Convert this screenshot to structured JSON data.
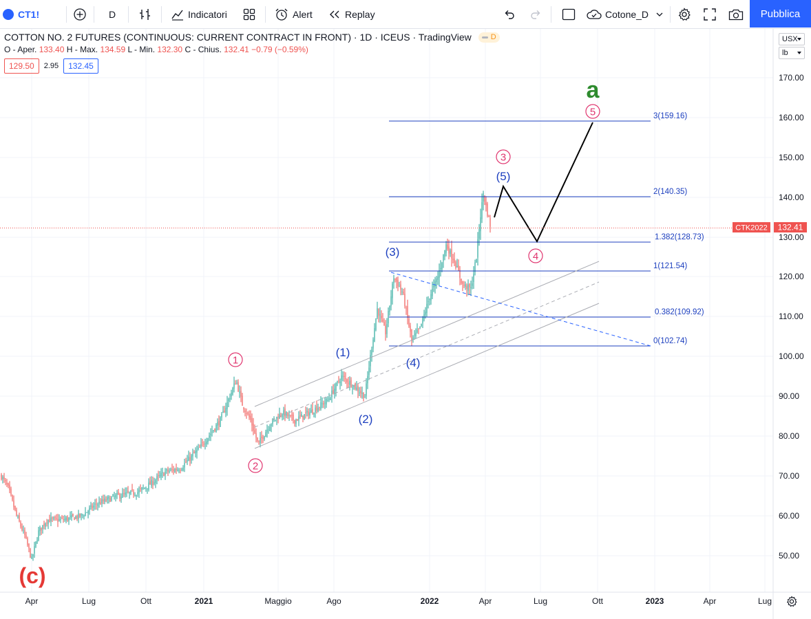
{
  "toolbar": {
    "symbol": "CT1!",
    "interval": "D",
    "indicators_label": "Indicatori",
    "alert_label": "Alert",
    "replay_label": "Replay",
    "layout_name": "Cotone_D",
    "publish_label": "Pubblica"
  },
  "legend": {
    "title": "COTTON NO. 2 FUTURES (CONTINUOUS: CURRENT CONTRACT IN FRONT) · 1D · ICEUS · TradingView",
    "delay_badge": "D",
    "open_label": "O - Aper.",
    "open": "133.40",
    "high_label": "H - Max.",
    "high": "134.59",
    "low_label": "L - Min.",
    "low": "132.30",
    "close_label": "C - Chius.",
    "close": "132.41",
    "change": "−0.79 (−0.59%)",
    "bid": "129.50",
    "spread": "2.95",
    "ask": "132.45"
  },
  "price_scale": {
    "currency": "USX",
    "unit": "lb",
    "ticks": [
      "170.00",
      "160.00",
      "150.00",
      "140.00",
      "130.00",
      "120.00",
      "110.00",
      "100.00",
      "90.00",
      "80.00",
      "70.00",
      "60.00",
      "50.00"
    ],
    "last_symbol_label": "CTK2022",
    "last_price": "132.41"
  },
  "time_scale": {
    "ticks": [
      "Apr",
      "Lug",
      "Ott",
      "2021",
      "Maggio",
      "Ago",
      "2022",
      "Apr",
      "Lug",
      "Ott",
      "2023",
      "Apr",
      "Lug"
    ]
  },
  "fibonacci": [
    {
      "label": "3(159.16)"
    },
    {
      "label": "2(140.35)"
    },
    {
      "label": "1.382(128.73)"
    },
    {
      "label": "1(121.54)"
    },
    {
      "label": "0.382(109.92)"
    },
    {
      "label": "0(102.74)"
    }
  ],
  "elliott_labels": {
    "c": "(c)",
    "a": "a",
    "w1": "1",
    "w2": "2",
    "w3": "3",
    "w4": "4",
    "w5": "5",
    "sub1": "(1)",
    "sub2": "(2)",
    "sub3": "(3)",
    "sub4": "(4)",
    "sub5": "(5)"
  },
  "colors": {
    "accent": "#2962ff",
    "down": "#ef5350",
    "up": "#26a69a",
    "wave_blue": "#1c3fbf",
    "wave_pink": "#e0356f",
    "wave_green": "#2e8b2e",
    "wave_red": "#e53935"
  }
}
